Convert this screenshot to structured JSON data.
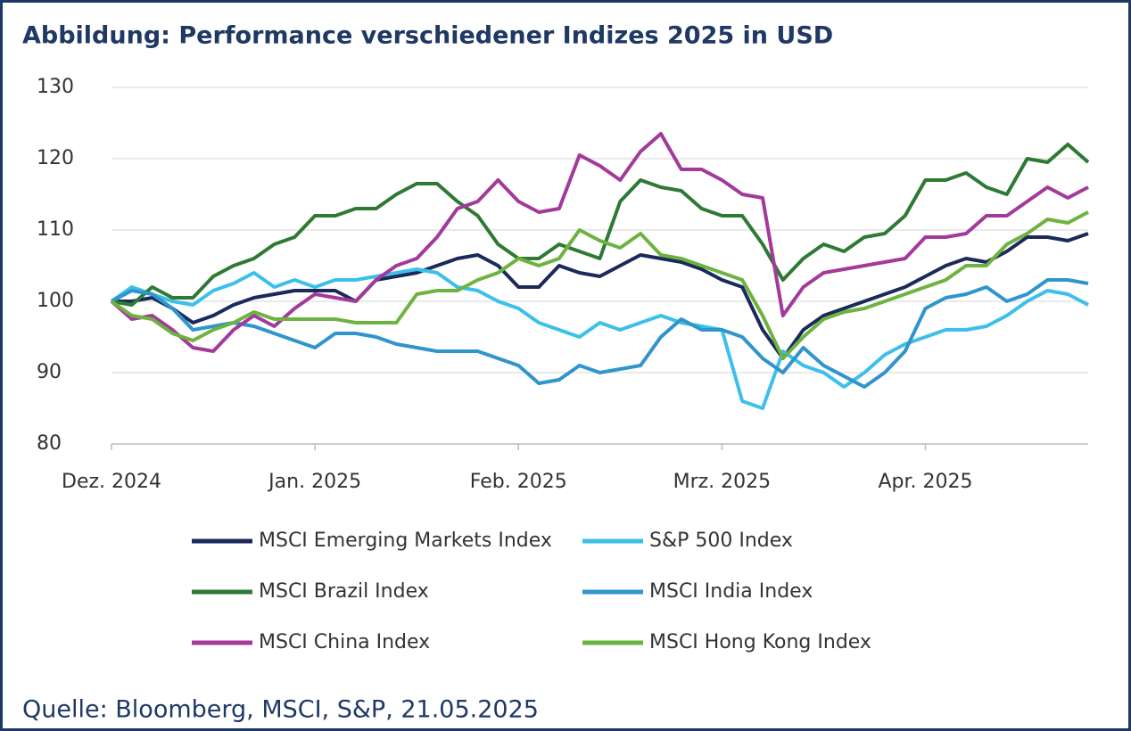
{
  "chart_data": {
    "type": "line",
    "title": "Abbildung: Performance verschiedener Indizes 2025 in USD",
    "source": "Quelle: Bloomberg, MSCI, S&P, 21.05.2025",
    "categories": [
      "Dez. 2024",
      null,
      null,
      null,
      null,
      null,
      null,
      null,
      null,
      null,
      "Jan. 2025",
      null,
      null,
      null,
      null,
      null,
      null,
      null,
      null,
      null,
      "Feb. 2025",
      null,
      null,
      null,
      null,
      null,
      null,
      null,
      null,
      null,
      "Mrz. 2025",
      null,
      null,
      null,
      null,
      null,
      null,
      null,
      null,
      null,
      "Apr. 2025",
      null,
      null,
      null,
      null,
      null,
      null,
      null,
      null
    ],
    "ylim": [
      80,
      130
    ],
    "yticks": [
      80,
      90,
      100,
      110,
      120,
      130
    ],
    "grid": true,
    "series": [
      {
        "name": "MSCI Emerging Markets Index",
        "color": "#1b2a5a",
        "values": [
          100,
          100,
          100.5,
          99,
          97,
          98,
          99.5,
          100.5,
          101,
          101.5,
          101.5,
          101.5,
          100,
          103,
          103.5,
          104,
          105,
          106,
          106.5,
          105,
          102,
          102,
          105,
          104,
          103.5,
          105,
          106.5,
          106,
          105.5,
          104.5,
          103,
          102,
          96,
          92,
          96,
          98,
          99,
          100,
          101,
          102,
          103.5,
          105,
          106,
          105.5,
          107,
          109,
          109,
          108.5,
          109.5
        ]
      },
      {
        "name": "S&P 500 Index",
        "color": "#3cc0ea",
        "values": [
          100,
          102,
          101,
          100,
          99.5,
          101.5,
          102.5,
          104,
          102,
          103,
          102,
          103,
          103,
          103.5,
          104,
          104.5,
          104,
          102,
          101.5,
          100,
          99,
          97,
          96,
          95,
          97,
          96,
          97,
          98,
          97,
          96.5,
          96,
          86,
          85,
          93,
          91,
          90,
          88,
          90,
          92.5,
          94,
          95,
          96,
          96,
          96.5,
          98,
          100,
          101.5,
          101,
          99.5
        ]
      },
      {
        "name": "MSCI Brazil Index",
        "color": "#2e7a34",
        "values": [
          100,
          99.5,
          102,
          100.5,
          100.5,
          103.5,
          105,
          106,
          108,
          109,
          112,
          112,
          113,
          113,
          115,
          116.5,
          116.5,
          114,
          112,
          108,
          106,
          106,
          108,
          107,
          106,
          114,
          117,
          116,
          115.5,
          113,
          112,
          112,
          108,
          103,
          106,
          108,
          107,
          109,
          109.5,
          112,
          117,
          117,
          118,
          116,
          115,
          120,
          119.5,
          122,
          119.5
        ]
      },
      {
        "name": "MSCI India Index",
        "color": "#2f95cc",
        "values": [
          100,
          101.5,
          101,
          99,
          96,
          96.5,
          97,
          96.5,
          95.5,
          94.5,
          93.5,
          95.5,
          95.5,
          95,
          94,
          93.5,
          93,
          93,
          93,
          92,
          91,
          88.5,
          89,
          91,
          90,
          90.5,
          91,
          95,
          97.5,
          96,
          96,
          95,
          92,
          90,
          93.5,
          91,
          89.5,
          88,
          90,
          93,
          99,
          100.5,
          101,
          102,
          100,
          101,
          103,
          103,
          102.5
        ]
      },
      {
        "name": "MSCI China Index",
        "color": "#a3399b",
        "values": [
          100,
          97.5,
          98,
          96,
          93.5,
          93,
          96,
          98,
          96.5,
          99,
          101,
          100.5,
          100,
          103,
          105,
          106,
          109,
          113,
          114,
          117,
          114,
          112.5,
          113,
          120.5,
          119,
          117,
          121,
          123.5,
          118.5,
          118.5,
          117,
          115,
          114.5,
          98,
          102,
          104,
          104.5,
          105,
          105.5,
          106,
          109,
          109,
          109.5,
          112,
          112,
          114,
          116,
          114.5,
          116
        ]
      },
      {
        "name": "MSCI Hong Kong Index",
        "color": "#6db33f",
        "values": [
          100,
          98,
          97.5,
          95.5,
          94.5,
          96,
          97,
          98.5,
          97.5,
          97.5,
          97.5,
          97.5,
          97,
          97,
          97,
          101,
          101.5,
          101.5,
          103,
          104,
          106,
          105,
          106,
          110,
          108.5,
          107.5,
          109.5,
          106.5,
          106,
          105,
          104,
          103,
          98,
          92,
          95,
          97.5,
          98.5,
          99,
          100,
          101,
          102,
          103,
          105,
          105,
          108,
          109.5,
          111.5,
          111,
          112.5
        ]
      }
    ]
  }
}
